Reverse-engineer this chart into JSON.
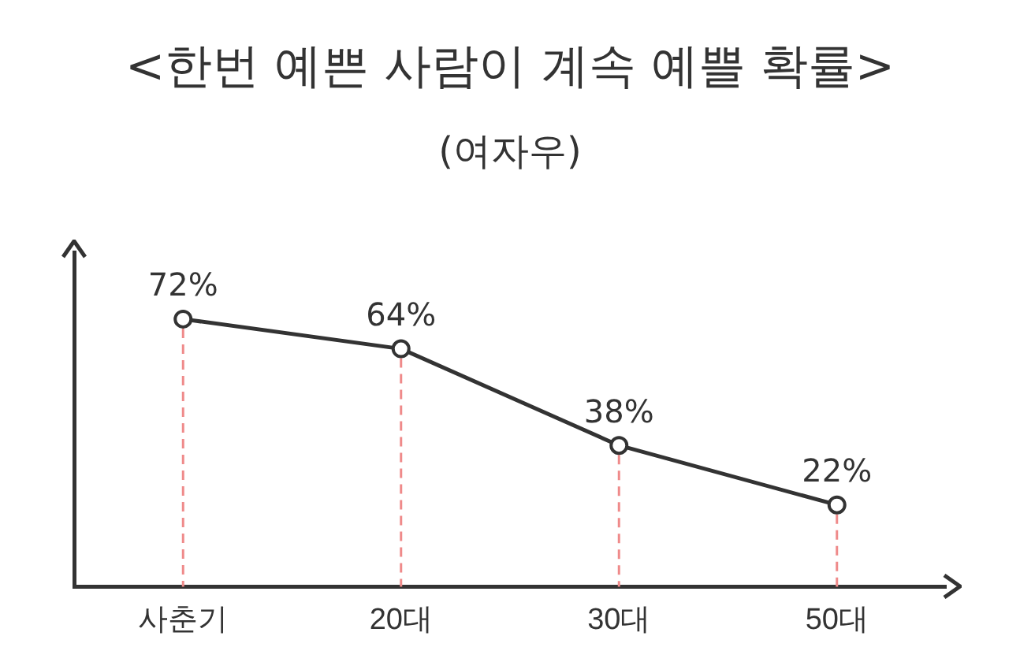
{
  "chart_data": {
    "type": "line",
    "title": "<한번 예쁜 사람이 계속 예쁠 확률>",
    "subtitle": "(여자우)",
    "categories": [
      "사춘기",
      "20대",
      "30대",
      "50대"
    ],
    "series": [
      {
        "color": "#333333",
        "values": [
          72,
          64,
          38,
          22
        ],
        "value_labels": [
          "72%",
          "64%",
          "38%",
          "22%"
        ]
      }
    ],
    "tick_labels": "x",
    "marker": "circle",
    "line_style": "solid",
    "grid": "x",
    "legend": false
  }
}
